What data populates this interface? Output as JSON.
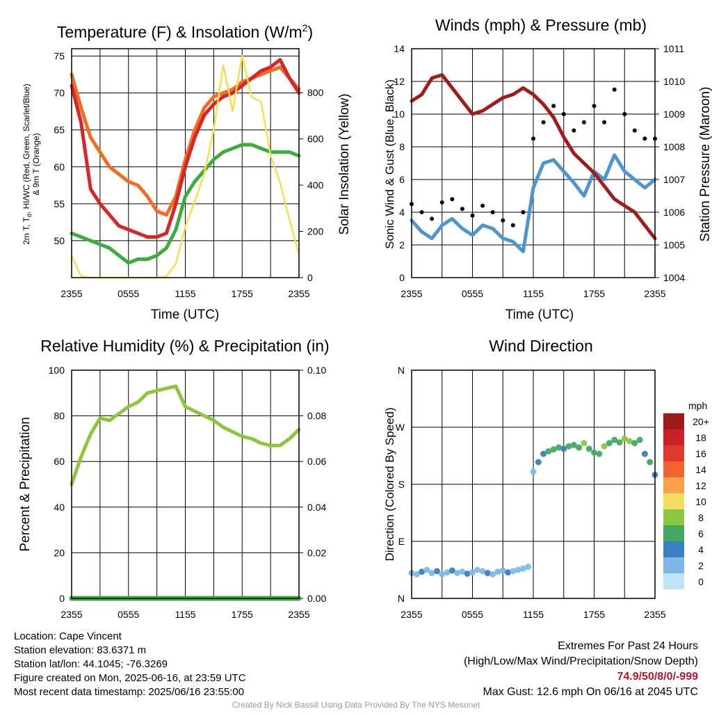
{
  "panels": {
    "temp": {
      "title_main": "Temperature (F) & Insolation (W/m",
      "title_sup": "2",
      "title_end": ")",
      "ylabel_line1": "2m T, T",
      "ylabel_sub": "d",
      "ylabel_line1_end": ", HI/WC (Red, Green, Scarlet/Blue)",
      "ylabel_line2": "& 9m T (Orange)",
      "y2label": "Solar Insolation (Yellow)",
      "xlabel": "Time (UTC)"
    },
    "wind": {
      "title": "Winds (mph) & Pressure (mb)",
      "ylabel": "Sonic Wind & Gust (Blue, Black)",
      "y2label": "Station Pressure (Maroon)",
      "xlabel": "Time (UTC)"
    },
    "rh": {
      "title": "Relative Humidity (%) & Precipitation (in)",
      "ylabel": "Percent & Precipitation"
    },
    "dir": {
      "title": "Wind Direction",
      "ylabel": "Direction (Colored By Speed)",
      "colorbar_title": "mph"
    }
  },
  "chart_data": [
    {
      "type": "line",
      "x_ticks": [
        "2355",
        "0555",
        "1155",
        "1755",
        "2355"
      ],
      "ylim": [
        45,
        76
      ],
      "y_ticks": [
        50,
        55,
        60,
        65,
        70,
        75
      ],
      "y2lim": [
        0,
        990
      ],
      "y2_ticks": [
        0,
        200,
        400,
        600,
        800
      ],
      "x_hours": [
        0,
        1,
        2,
        3,
        4,
        5,
        6,
        7,
        8,
        9,
        10,
        11,
        12,
        13,
        14,
        15,
        16,
        17,
        18,
        19,
        20,
        21,
        22,
        23,
        24
      ],
      "series": [
        {
          "color": "#f26d21",
          "role": "9m T",
          "values": [
            72.5,
            68,
            64,
            62,
            60,
            59,
            58,
            57.5,
            56,
            54,
            53.5,
            56,
            61,
            65,
            68,
            69.5,
            70,
            70.5,
            71.5,
            72,
            72.5,
            73,
            73.5,
            72,
            70.5
          ]
        },
        {
          "color": "#d62728",
          "role": "2m T",
          "values": [
            71,
            66,
            57,
            55,
            53.5,
            52,
            51.5,
            51,
            50.5,
            50.5,
            51,
            55,
            60,
            64,
            67,
            68.5,
            69.5,
            70,
            71,
            72,
            73,
            73.5,
            74.5,
            72,
            70
          ]
        },
        {
          "color": "#3aad3a",
          "role": "HI/WC",
          "values": [
            51,
            50.5,
            50,
            49.5,
            49,
            48,
            47,
            47.5,
            47.5,
            48,
            49,
            51.5,
            56,
            58,
            59.5,
            61,
            62,
            62.5,
            63,
            63,
            62.5,
            62,
            62,
            62,
            61.5
          ]
        },
        {
          "color": "#f4e04d",
          "axis": "right",
          "role": "Solar Insolation",
          "values": [
            95,
            5,
            0,
            0,
            0,
            0,
            0,
            0,
            0,
            0,
            5,
            60,
            220,
            330,
            450,
            640,
            920,
            720,
            960,
            780,
            760,
            530,
            410,
            250,
            100
          ]
        }
      ]
    },
    {
      "type": "line",
      "x_ticks": [
        "2355",
        "0555",
        "1155",
        "1755",
        "2355"
      ],
      "ylim": [
        0,
        14
      ],
      "y_ticks": [
        0,
        2,
        4,
        6,
        8,
        10,
        12,
        14
      ],
      "y2lim": [
        1004,
        1011
      ],
      "y2_ticks": [
        1004,
        1005,
        1006,
        1007,
        1008,
        1009,
        1010,
        1011
      ],
      "x_hours": [
        0,
        1,
        2,
        3,
        4,
        5,
        6,
        7,
        8,
        9,
        10,
        11,
        12,
        13,
        14,
        15,
        16,
        17,
        18,
        19,
        20,
        21,
        22,
        23,
        24
      ],
      "series": [
        {
          "color": "#4e95d0",
          "role": "Sonic Wind",
          "values": [
            3.5,
            2.8,
            2.4,
            3.2,
            3.6,
            3.0,
            2.6,
            3.2,
            3.0,
            2.4,
            2.2,
            1.6,
            5.5,
            7.0,
            7.2,
            6.5,
            5.8,
            5.0,
            6.5,
            6.0,
            7.5,
            6.5,
            6.0,
            5.5,
            6.0
          ]
        },
        {
          "color": "#000000",
          "role": "Gust",
          "values": [
            4.5,
            4.0,
            3.6,
            4.6,
            4.8,
            4.2,
            3.8,
            4.4,
            4.0,
            3.5,
            3.2,
            4.0,
            8.5,
            9.5,
            10.5,
            10.0,
            9.0,
            9.5,
            10.5,
            9.5,
            11.5,
            10.0,
            9.0,
            8.5,
            8.5
          ]
        },
        {
          "color": "#a01c1c",
          "axis": "right",
          "role": "Station Pressure",
          "values": [
            1009.4,
            1009.6,
            1010.1,
            1010.2,
            1009.8,
            1009.4,
            1009.0,
            1009.1,
            1009.3,
            1009.5,
            1009.6,
            1009.8,
            1009.6,
            1009.3,
            1008.9,
            1008.3,
            1007.8,
            1007.5,
            1007.2,
            1006.8,
            1006.4,
            1006.2,
            1006.0,
            1005.6,
            1005.2
          ]
        }
      ]
    },
    {
      "type": "line",
      "x_ticks": [
        "2355",
        "0555",
        "1155",
        "1755",
        "2355"
      ],
      "ylim": [
        0,
        100
      ],
      "y_ticks": [
        0,
        20,
        40,
        60,
        80,
        100
      ],
      "y2lim": [
        0,
        0.1
      ],
      "y2_ticks": [
        "0.00",
        "0.02",
        "0.04",
        "0.06",
        "0.08",
        "0.10"
      ],
      "x_hours": [
        0,
        1,
        2,
        3,
        4,
        5,
        6,
        7,
        8,
        9,
        10,
        11,
        12,
        13,
        14,
        15,
        16,
        17,
        18,
        19,
        20,
        21,
        22,
        23,
        24
      ],
      "series": [
        {
          "color": "#8cc63f",
          "role": "Relative Humidity",
          "values": [
            50,
            62,
            72,
            79,
            78,
            81,
            84,
            86,
            90,
            91,
            92,
            93,
            84,
            82,
            80,
            78,
            75,
            73,
            71,
            70,
            68,
            67,
            67,
            70,
            74
          ]
        },
        {
          "color": "#3aad3a",
          "axis": "right",
          "role": "Precipitation",
          "values": [
            0,
            0,
            0,
            0,
            0,
            0,
            0,
            0,
            0,
            0,
            0,
            0,
            0,
            0,
            0,
            0,
            0,
            0,
            0,
            0,
            0,
            0,
            0,
            0,
            0
          ]
        }
      ]
    },
    {
      "type": "scatter",
      "x_ticks": [
        "2355",
        "0555",
        "1155",
        "1755",
        "2355"
      ],
      "y_ticks": [
        "N",
        "E",
        "S",
        "W",
        "N"
      ],
      "ylim": [
        0,
        360
      ],
      "x_hours": [
        0,
        0.5,
        1,
        1.5,
        2,
        2.5,
        3,
        3.5,
        4,
        4.5,
        5,
        5.5,
        6,
        6.5,
        7,
        7.5,
        8,
        8.5,
        9,
        9.5,
        10,
        10.5,
        11,
        11.5,
        12,
        12.5,
        13,
        13.5,
        14,
        14.5,
        15,
        15.5,
        16,
        16.5,
        17,
        17.5,
        18,
        18.5,
        19,
        19.5,
        20,
        20.5,
        21,
        21.5,
        22,
        22.5,
        23,
        23.5,
        24
      ],
      "directions": [
        40,
        38,
        42,
        45,
        40,
        43,
        38,
        41,
        44,
        40,
        42,
        39,
        41,
        45,
        43,
        40,
        38,
        42,
        44,
        41,
        43,
        45,
        47,
        50,
        200,
        215,
        228,
        232,
        235,
        238,
        236,
        240,
        242,
        238,
        245,
        236,
        230,
        228,
        240,
        245,
        250,
        246,
        252,
        248,
        245,
        250,
        228,
        215,
        195
      ],
      "speeds": [
        2,
        2,
        3,
        2,
        2,
        3,
        2,
        2,
        3,
        2,
        2,
        3,
        2,
        2,
        2,
        3,
        2,
        2,
        2,
        3,
        2,
        2,
        2,
        1,
        2,
        3,
        4,
        5,
        6,
        5,
        4,
        6,
        5,
        6,
        7,
        6,
        5,
        6,
        7,
        6,
        5,
        6,
        8,
        7,
        6,
        5,
        4,
        5,
        4
      ],
      "colorbar": {
        "labels": [
          "20+",
          "18",
          "16",
          "14",
          "12",
          "10",
          "8",
          "6",
          "4",
          "2",
          "0"
        ],
        "colors": [
          "#9e1b1b",
          "#c82127",
          "#e03a2e",
          "#f06432",
          "#f8a04a",
          "#f2df5f",
          "#8cc63f",
          "#43a862",
          "#3a7fc2",
          "#7fb8e6",
          "#bfe4f7"
        ]
      }
    }
  ],
  "footer": {
    "location": "Location: Cape Vincent",
    "elevation": "Station elevation: 83.6371 m",
    "latlon": "Station lat/lon: 44.1045; -76.3269",
    "created": "Figure created on Mon, 2025-06-16, at 23:59 UTC",
    "timestamp": "Most recent data timestamp: 2025/06/16 23:55:00",
    "extremes_title": "Extremes For Past 24 Hours",
    "extremes_sub": "(High/Low/Max Wind/Precipitation/Snow Depth)",
    "extremes_values": "74.9/50/8/0/-999",
    "max_gust": "Max Gust: 12.6 mph On 06/16 at 2045 UTC",
    "credit": "Created By Nick Bassill Using Data Provided By The NYS Mesonet"
  }
}
